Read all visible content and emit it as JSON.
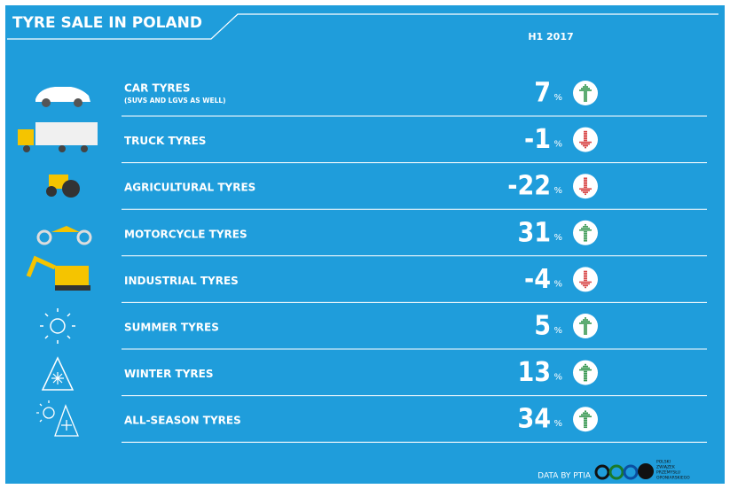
{
  "header": {
    "title": "TYRE SALE IN POLAND",
    "period": "H1 2017"
  },
  "rows": [
    {
      "label": "CAR TYRES",
      "sublabel": "(SUVS AND LGVS AS WELL)",
      "value": 7,
      "unit": "%"
    },
    {
      "label": "TRUCK TYRES",
      "value": -1,
      "unit": "%"
    },
    {
      "label": "AGRICULTURAL TYRES",
      "value": -22,
      "unit": "%"
    },
    {
      "label": "MOTORCYCLE TYRES",
      "value": 31,
      "unit": "%"
    },
    {
      "label": "INDUSTRIAL TYRES",
      "value": -4,
      "unit": "%"
    },
    {
      "label": "SUMMER TYRES",
      "value": 5,
      "unit": "%"
    },
    {
      "label": "WINTER TYRES",
      "value": 13,
      "unit": "%"
    },
    {
      "label": "ALL-SEASON TYRES",
      "value": 34,
      "unit": "%"
    }
  ],
  "footer": {
    "source": "DATA BY PTIA",
    "logo_lines": [
      "POLSKI",
      "ZWIĄZEK",
      "PRZEMYSŁU",
      "OPONIARSKIEGO"
    ]
  }
}
